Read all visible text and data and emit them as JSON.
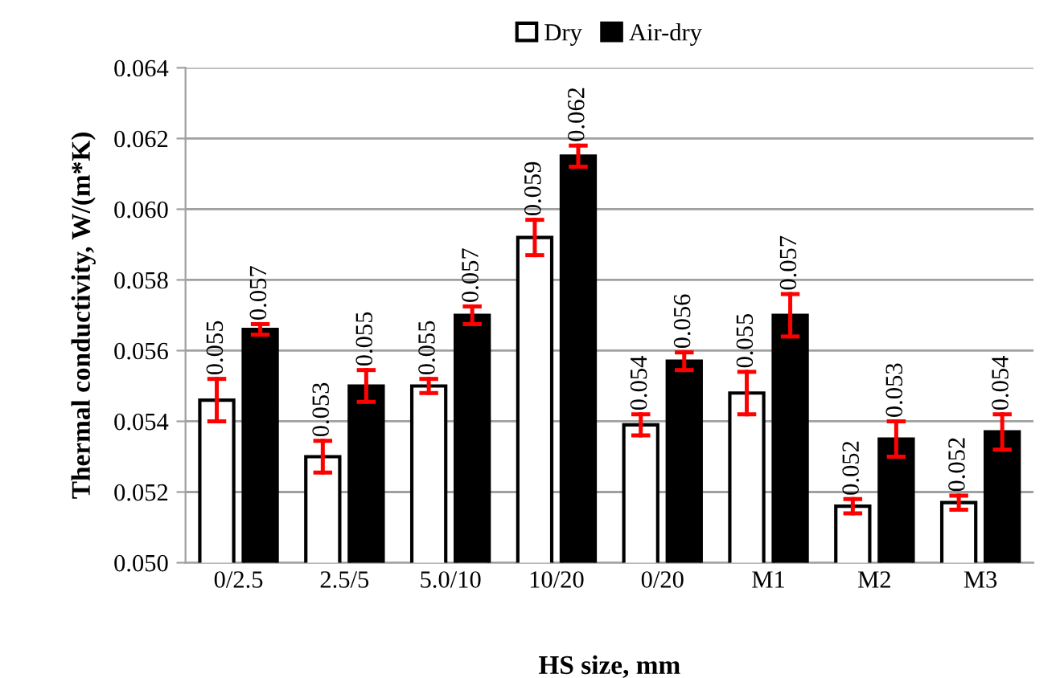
{
  "chart_data": {
    "type": "bar",
    "xlabel": "HS size, mm",
    "ylabel": "Thermal conductivity, W/(m*K)",
    "categories": [
      "0/2.5",
      "2.5/5",
      "5.0/10",
      "10/20",
      "0/20",
      "M1",
      "M2",
      "M3"
    ],
    "series": [
      {
        "name": "Dry",
        "color": "#ffffff",
        "values": [
          0.0546,
          0.053,
          0.055,
          0.0592,
          0.0539,
          0.0548,
          0.0516,
          0.0517
        ],
        "errors": [
          0.0006,
          0.00045,
          0.0002,
          0.0005,
          0.0003,
          0.0006,
          0.0002,
          0.0002
        ],
        "value_labels": [
          "0.055",
          "0.053",
          "0.055",
          "0.059",
          "0.054",
          "0.055",
          "0.052",
          "0.052"
        ]
      },
      {
        "name": "Air-dry",
        "color": "#000000",
        "values": [
          0.0566,
          0.055,
          0.057,
          0.0615,
          0.0557,
          0.057,
          0.0535,
          0.0537
        ],
        "errors": [
          0.00015,
          0.00045,
          0.00025,
          0.0003,
          0.00025,
          0.0006,
          0.0005,
          0.0005
        ],
        "value_labels": [
          "0.057",
          "0.055",
          "0.057",
          "0.062",
          "0.056",
          "0.057",
          "0.053",
          "0.054"
        ]
      }
    ],
    "ylim": [
      0.05,
      0.064
    ],
    "yticks": [
      {
        "value": 0.05,
        "label": "0.050"
      },
      {
        "value": 0.052,
        "label": "0.052"
      },
      {
        "value": 0.054,
        "label": "0.054"
      },
      {
        "value": 0.056,
        "label": "0.056"
      },
      {
        "value": 0.058,
        "label": "0.058"
      },
      {
        "value": 0.06,
        "label": "0.060"
      },
      {
        "value": 0.062,
        "label": "0.062"
      },
      {
        "value": 0.064,
        "label": "0.064"
      }
    ],
    "grid": "y",
    "legend": "top"
  }
}
